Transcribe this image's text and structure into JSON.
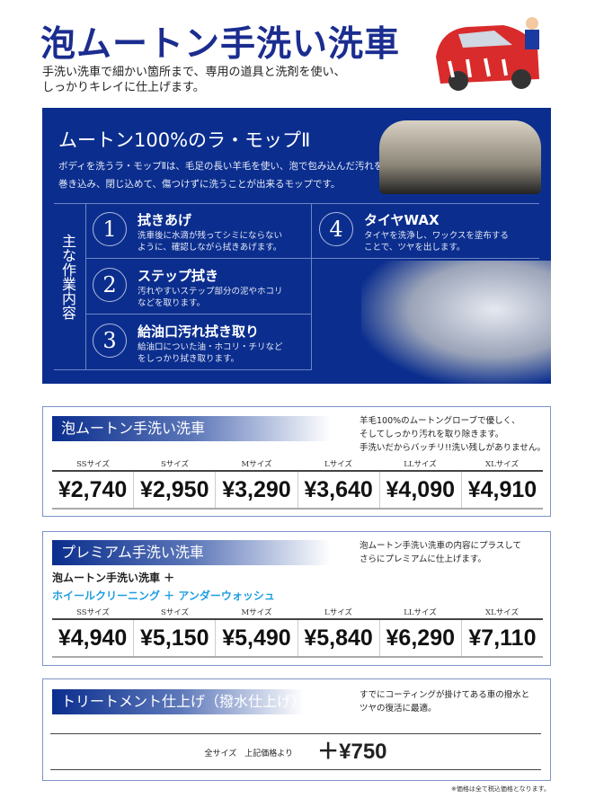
{
  "header": {
    "title": "泡ムートン手洗い洗車",
    "subtitle_lines": [
      "手洗い洗車で細かい箇所まで、専用の道具と洗剤を使い、",
      "しっかりキレイに仕上げます。"
    ]
  },
  "panel": {
    "title": "ムートン100%のラ・モップⅡ",
    "desc_lines": [
      "ボディを洗うラ・モップⅡは、毛足の長い羊毛を使い、泡で包み込んだ汚れを",
      "巻き込み、閉じ込めて、傷つけずに洗うことが出来るモップです。"
    ],
    "side_label": "主な作業内容",
    "items": [
      {
        "num": "1",
        "title": "拭きあげ",
        "desc_lines": [
          "洗車後に水滴が残ってシミにならない",
          "ように、確認しながら拭きあげます。"
        ]
      },
      {
        "num": "2",
        "title": "ステップ拭き",
        "desc_lines": [
          "汚れやすいステップ部分の泥やホコリ",
          "などを取ります。"
        ]
      },
      {
        "num": "3",
        "title": "給油口汚れ拭き取り",
        "desc_lines": [
          "給油口についた油・ホコリ・チリなど",
          "をしっかり拭き取ります。"
        ]
      },
      {
        "num": "4",
        "title": "タイヤWAX",
        "desc_lines": [
          "タイヤを洗浄し、ワックスを塗布する",
          "ことで、ツヤを出します。"
        ]
      }
    ]
  },
  "sizes": [
    "SSサイズ",
    "Sサイズ",
    "Mサイズ",
    "Lサイズ",
    "LLサイズ",
    "XLサイズ"
  ],
  "plans": [
    {
      "title": "泡ムートン手洗い洗車",
      "desc_lines": [
        "羊毛100%のムートングローブで優しく、",
        "そしてしっかり汚れを取り除きます。",
        "手洗いだからバッチリ!!洗い残しがありません。"
      ],
      "prices": [
        "¥2,740",
        "¥2,950",
        "¥3,290",
        "¥3,640",
        "¥4,090",
        "¥4,910"
      ]
    },
    {
      "title": "プレミアム手洗い洗車",
      "desc_lines": [
        "泡ムートン手洗い洗車の内容にプラスして",
        "さらにプレミアムに仕上げます。"
      ],
      "includes": "泡ムートン手洗い洗車 ＋",
      "extras": "ホイールクリーニング ＋ アンダーウォッシュ",
      "prices": [
        "¥4,940",
        "¥5,150",
        "¥5,490",
        "¥5,840",
        "¥6,290",
        "¥7,110"
      ]
    },
    {
      "title": "トリートメント仕上げ（撥水仕上げ）",
      "desc_lines": [
        "すでにコーティングが掛けてある車の撥水と",
        "ツヤの復活に最適。"
      ],
      "all_sizes": "全サイズ　上記価格より",
      "price": "＋¥750"
    }
  ],
  "note": "※価格は全て税込価格となります。",
  "colors": {
    "brand_blue": "#0b2e8e",
    "title_blue": "#1b2d8f",
    "accent_cyan": "#1e9ee0"
  }
}
